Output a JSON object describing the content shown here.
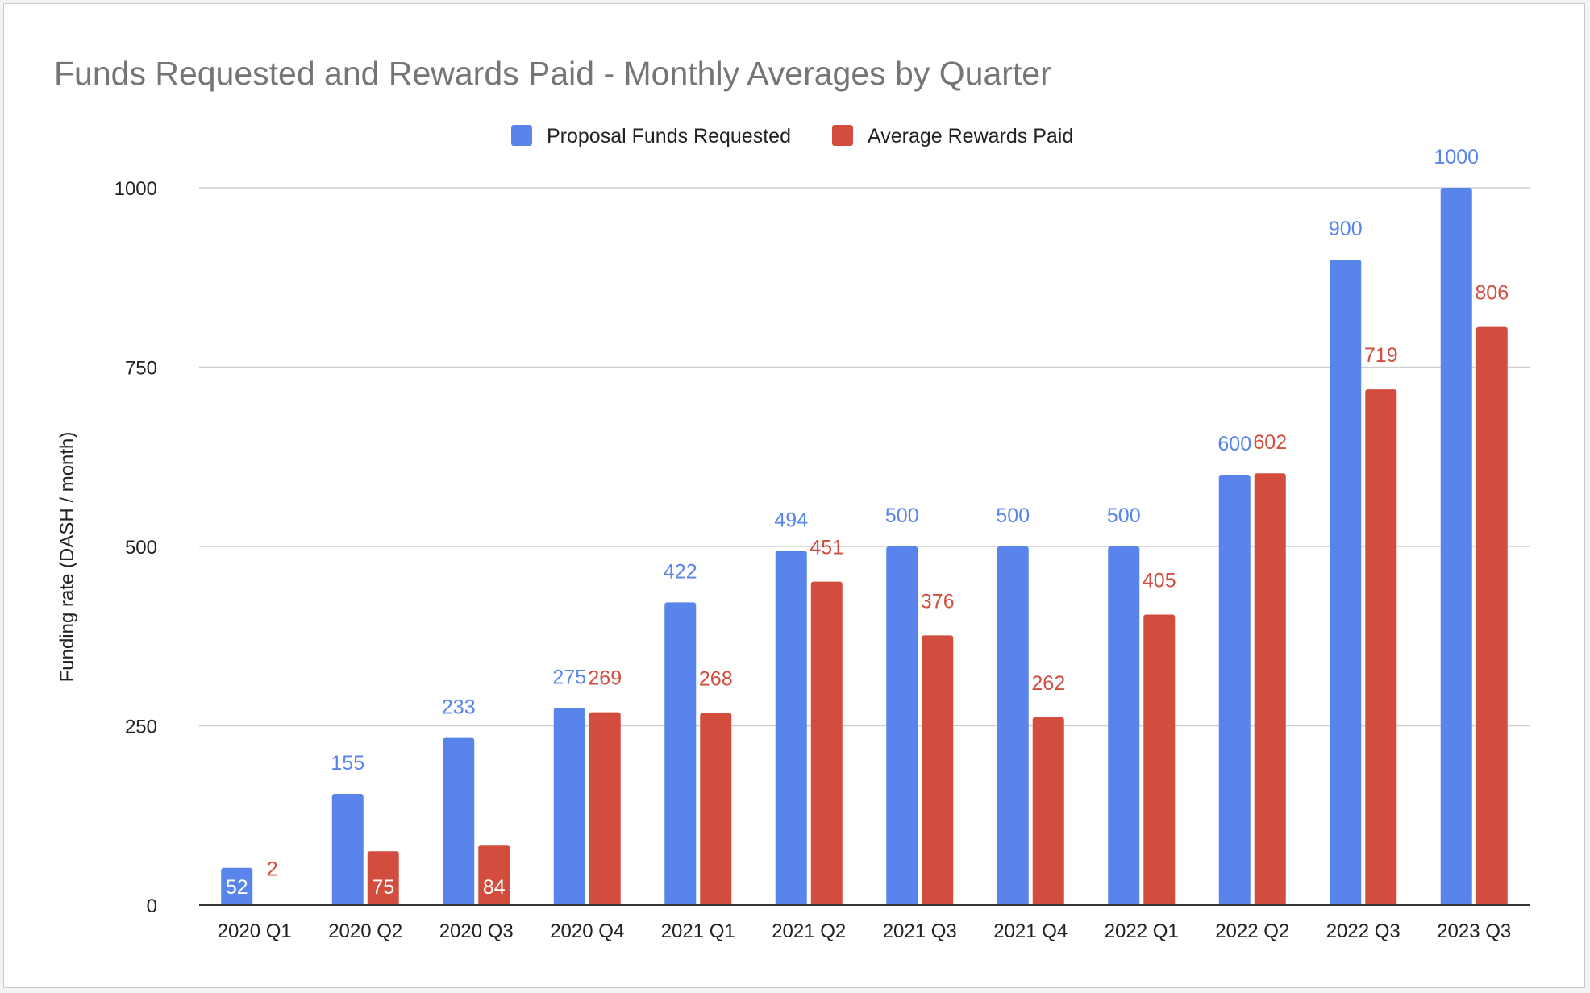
{
  "chart_data": {
    "type": "bar",
    "title": "Funds Requested and Rewards Paid - Monthly Averages by Quarter",
    "xlabel": "",
    "ylabel": "Funding rate (DASH / month)",
    "ylim": [
      0,
      1000
    ],
    "yticks": [
      0,
      250,
      500,
      750,
      1000
    ],
    "grid": true,
    "legend_position": "top",
    "categories": [
      "2020 Q1",
      "2020 Q2",
      "2020 Q3",
      "2020 Q4",
      "2021 Q1",
      "2021 Q2",
      "2021 Q3",
      "2021 Q4",
      "2022 Q1",
      "2022 Q2",
      "2022 Q3",
      "2023 Q3"
    ],
    "series": [
      {
        "name": "Proposal Funds Requested",
        "color": "#5884ec",
        "values": [
          52,
          155,
          233,
          275,
          422,
          494,
          500,
          500,
          500,
          600,
          900,
          1000
        ]
      },
      {
        "name": "Average Rewards Paid",
        "color": "#d24d3e",
        "values": [
          2,
          75,
          84,
          269,
          268,
          451,
          376,
          262,
          405,
          602,
          719,
          806
        ]
      }
    ]
  }
}
